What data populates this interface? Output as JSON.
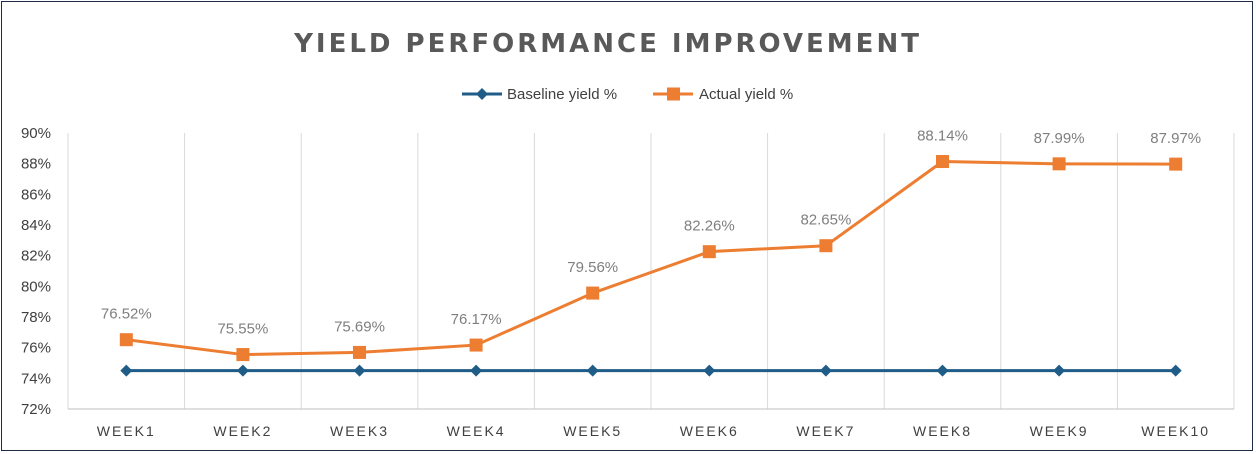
{
  "chart_data": {
    "type": "line",
    "title": "YIELD PERFORMANCE IMPROVEMENT",
    "categories": [
      "WEEK1",
      "WEEK2",
      "WEEK3",
      "WEEK4",
      "WEEK5",
      "WEEK6",
      "WEEK7",
      "WEEK8",
      "WEEK9",
      "WEEK10"
    ],
    "ylim": [
      72,
      90
    ],
    "yticks": [
      72,
      74,
      76,
      78,
      80,
      82,
      84,
      86,
      88,
      90
    ],
    "ytick_labels": [
      "72%",
      "74%",
      "76%",
      "78%",
      "80%",
      "82%",
      "84%",
      "86%",
      "88%",
      "90%"
    ],
    "vertical_gridlines": true,
    "legend_position": "top",
    "series": [
      {
        "name": "Baseline yield %",
        "color": "#1f5c87",
        "marker": "diamond",
        "values": [
          74.5,
          74.5,
          74.5,
          74.5,
          74.5,
          74.5,
          74.5,
          74.5,
          74.5,
          74.5
        ]
      },
      {
        "name": "Actual yield %",
        "color": "#ed7d31",
        "marker": "square",
        "values": [
          76.52,
          75.55,
          75.69,
          76.17,
          79.56,
          82.26,
          82.65,
          88.14,
          87.99,
          87.97
        ],
        "data_labels": [
          "76.52%",
          "75.55%",
          "75.69%",
          "76.17%",
          "79.56%",
          "82.26%",
          "82.65%",
          "88.14%",
          "87.99%",
          "87.97%"
        ]
      }
    ]
  }
}
